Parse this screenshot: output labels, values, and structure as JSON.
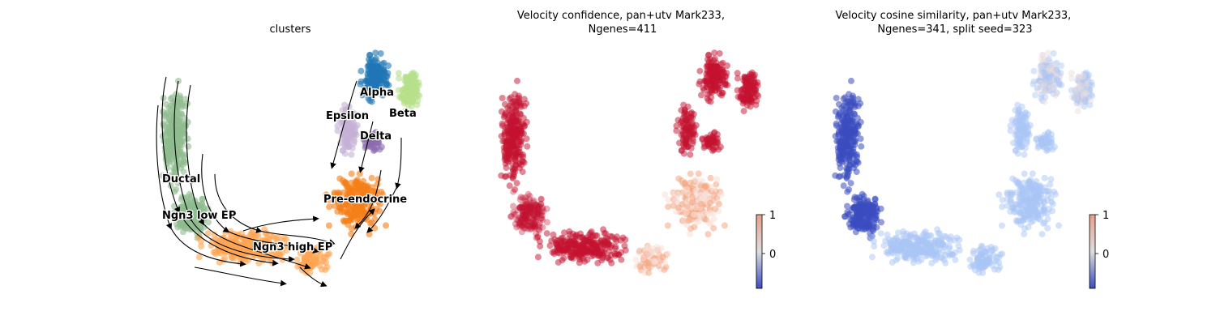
{
  "figure": {
    "panels": [
      {
        "title_lines": [
          "clusters"
        ],
        "cluster_labels": [
          "Alpha",
          "Beta",
          "Epsilon",
          "Delta",
          "Ductal",
          "Pre-endocrine",
          "Ngn3 low EP",
          "Ngn3 high EP"
        ]
      },
      {
        "title_lines": [
          "Velocity confidence, pan+utv Mark233,",
          "Ngenes=411"
        ],
        "colorbar_ticks": [
          "1",
          "0"
        ]
      },
      {
        "title_lines": [
          "Velocity cosine similarity, pan+utv Mark233,",
          "Ngenes=341, split seed=323"
        ],
        "colorbar_ticks": [
          "1",
          "0"
        ]
      }
    ],
    "colors": {
      "Ductal": "#8fbc8f",
      "Ngn3 low EP": "#8fbc8f",
      "Ngn3 high EP": "#ffa552",
      "Pre-endocrine": "#f57f17",
      "Alpha": "#1f77b4",
      "Beta": "#b5e08a",
      "Epsilon": "#c5b0d5",
      "Delta": "#8c6bb1",
      "confidence_high": "#c41230",
      "confidence_mid": "#f4a582",
      "confidence_low": "#f7e0d8",
      "cosine_low": "#3b4cc0",
      "cosine_mid": "#aac6f5",
      "cosine_high": "#e8dcdc"
    }
  },
  "chart_data": [
    {
      "type": "scatter",
      "title": "clusters",
      "description_points": "UMAP embedding of pancreas endocrinogenesis cells colored by cluster, with RNA velocity streamlines",
      "categories": [
        "Ductal",
        "Ngn3 low EP",
        "Ngn3 high EP",
        "Pre-endocrine",
        "Alpha",
        "Beta",
        "Epsilon",
        "Delta"
      ],
      "legend": "on data",
      "grid": false,
      "streamlines": true
    },
    {
      "type": "scatter",
      "title": "Velocity confidence, pan+utv Mark233, Ngenes=411",
      "colorbar": {
        "ticks": [
          1,
          0
        ],
        "cmap": "coolwarm"
      },
      "grid": false
    },
    {
      "type": "scatter",
      "title": "Velocity cosine similarity, pan+utv Mark233, Ngenes=341, split seed=323",
      "colorbar": {
        "ticks": [
          1,
          0
        ],
        "cmap": "coolwarm"
      },
      "grid": false
    }
  ]
}
